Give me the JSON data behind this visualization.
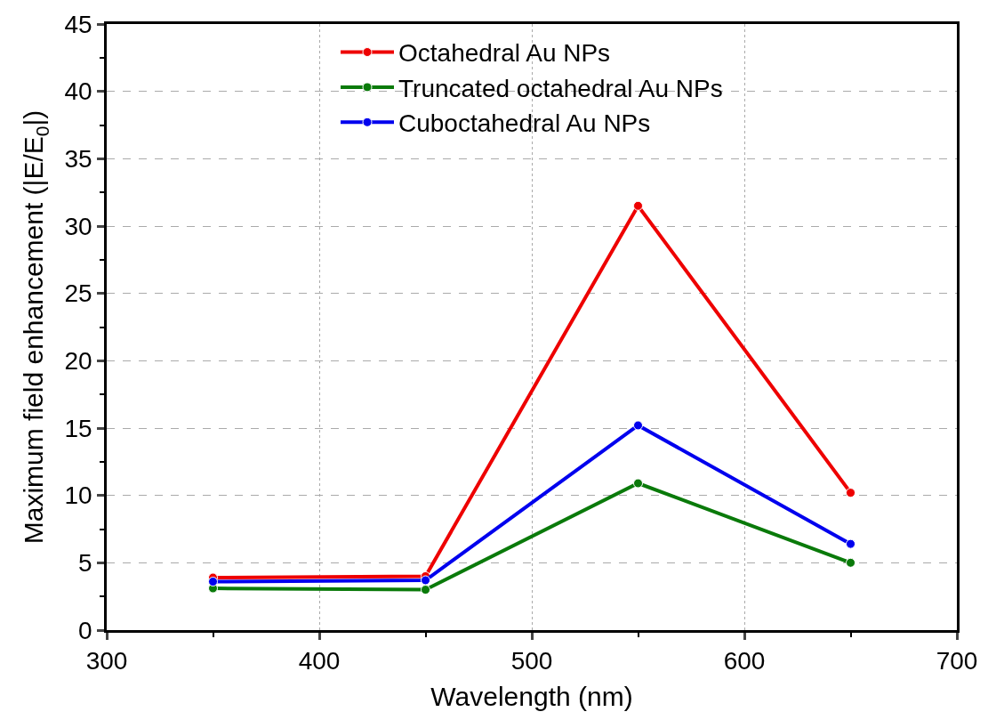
{
  "chart_data": {
    "type": "line",
    "xlabel": "Wavelength (nm)",
    "ylabel": "Maximum field enhancement (|E/E$_{0}$|)",
    "x": [
      350,
      450,
      550,
      650
    ],
    "series": [
      {
        "name": "Octahedral Au NPs",
        "color": "#ee0000",
        "values": [
          3.9,
          4.0,
          31.5,
          10.2
        ]
      },
      {
        "name": "Truncated octahedral Au NPs",
        "color": "#0a7a0a",
        "values": [
          3.1,
          3.0,
          10.9,
          5.0
        ]
      },
      {
        "name": "Cuboctahedral Au NPs",
        "color": "#0000ee",
        "values": [
          3.6,
          3.7,
          15.2,
          6.4
        ]
      }
    ],
    "xlim": [
      300,
      700
    ],
    "xticks": [
      300,
      400,
      500,
      600,
      700
    ],
    "ylim": [
      0,
      45
    ],
    "yticks": [
      0,
      5,
      10,
      15,
      20,
      25,
      30,
      35,
      40,
      45
    ],
    "grid": true,
    "legend": "top",
    "marker": "circle",
    "line_style": "solid"
  }
}
